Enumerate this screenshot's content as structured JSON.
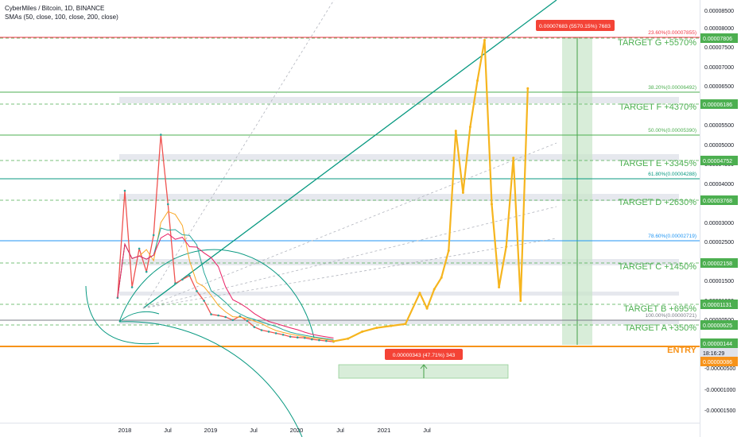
{
  "header": {
    "title": "CyberMiles / Bitcoin, 1D, BINANCE",
    "indicators": "SMAs (50, close, 100, close, 200, close)"
  },
  "chart_data": {
    "type": "line",
    "title": "CyberMiles / Bitcoin, 1D, BINANCE",
    "ylim": [
      -1.8e-06,
      8.8e-06
    ],
    "price_axis_ticks": [
      "0.00008500",
      "0.00008000",
      "0.00007500",
      "0.00007000",
      "0.00006500",
      "0.00006000",
      "0.00005500",
      "0.00005000",
      "0.00004500",
      "0.00004000",
      "0.00003500",
      "0.00003000",
      "0.00002500",
      "0.00002000",
      "0.00001500",
      "0.00001000",
      "0.00000500",
      "-0.00000500",
      "-0.00001000",
      "-0.00001500"
    ],
    "time_axis_ticks": [
      "2018",
      "Jul",
      "2019",
      "Jul",
      "2020",
      "Jul",
      "2021",
      "Jul"
    ],
    "price_history": {
      "dates": [
        "2017-12",
        "2018-01",
        "2018-02",
        "2018-03",
        "2018-04",
        "2018-05",
        "2018-06",
        "2018-07",
        "2018-08",
        "2018-09",
        "2018-10",
        "2018-11",
        "2018-12",
        "2019-01",
        "2019-02",
        "2019-03",
        "2019-04",
        "2019-05",
        "2019-06",
        "2019-07",
        "2019-08",
        "2019-09",
        "2019-10",
        "2019-11",
        "2019-12",
        "2020-01",
        "2020-02",
        "2020-03",
        "2020-04",
        "2020-05",
        "2020-06"
      ],
      "values": [
        1.18e-05,
        3.95e-05,
        1.45e-05,
        2.45e-05,
        1.85e-05,
        2.8e-05,
        5.4e-05,
        3.6e-05,
        1.55e-05,
        1.65e-05,
        1.75e-05,
        1.35e-05,
        1.1e-05,
        7.5e-06,
        7.2e-06,
        6.8e-06,
        6e-06,
        7e-06,
        5.8e-06,
        4.2e-06,
        3.4e-06,
        3e-06,
        2.6e-06,
        2.2e-06,
        1.7e-06,
        1.5e-06,
        1.4e-06,
        1e-06,
        8e-07,
        6e-07,
        4e-07
      ]
    },
    "projection": {
      "dates": [
        "2020-06",
        "2020-08",
        "2020-10",
        "2020-12",
        "2021-02",
        "2021-04",
        "2021-06",
        "2021-07",
        "2021-08",
        "2021-09",
        "2021-10",
        "2021-11",
        "2021-12",
        "2022-01",
        "2022-02",
        "2022-03",
        "2022-04",
        "2022-05",
        "2022-06",
        "2022-07",
        "2022-08",
        "2022-09"
      ],
      "values": [
        5e-07,
        1.2e-06,
        3e-06,
        4e-06,
        4.5e-06,
        5e-06,
        1.3e-05,
        9e-06,
        1.4e-05,
        1.7e-05,
        2.4e-05,
        5.5e-05,
        3.9e-05,
        5.6e-05,
        6.8e-05,
        7.85e-05,
        3.6e-05,
        1.45e-05,
        2.5e-05,
        4.8e-05,
        1.1e-05,
        6.6e-05
      ]
    },
    "targets": [
      {
        "label": "ENTRY",
        "price": "0.00000086",
        "color": "#f7931a"
      },
      {
        "label": "TARGET A +350%",
        "price": "0.00000625",
        "color": "#4caf50"
      },
      {
        "label": "TARGET B +695%",
        "price": "0.00001131",
        "color": "#4caf50"
      },
      {
        "label": "TARGET C +1450%",
        "price": "0.00002158",
        "color": "#4caf50"
      },
      {
        "label": "TARGET D +2630%",
        "price": "0.00003768",
        "color": "#4caf50"
      },
      {
        "label": "TARGET E +3345%",
        "price": "0.00004752",
        "color": "#4caf50"
      },
      {
        "label": "TARGET F +4370%",
        "price": "0.00006186",
        "color": "#4caf50"
      },
      {
        "label": "TARGET G +5570%",
        "price": "0.00007806",
        "color": "#4caf50"
      }
    ],
    "fib_levels": [
      {
        "label": "23.60%(0.00007855)",
        "color": "#f23645"
      },
      {
        "label": "38.20%(0.00006492)",
        "color": "#4caf50"
      },
      {
        "label": "50.00%(0.00005390)",
        "color": "#4caf50"
      },
      {
        "label": "61.80%(0.00004288)",
        "color": "#089981"
      },
      {
        "label": "78.60%(0.00002719)",
        "color": "#2196f3"
      },
      {
        "label": "100.00%(0.00000721)",
        "color": "#787b86"
      }
    ],
    "price_tags": [
      {
        "text": "0.00000144",
        "color": "#4caf50"
      },
      {
        "text": "18:16:29",
        "color": "#e0e3eb"
      },
      {
        "text": "0.00000086",
        "color": "#f7931a"
      }
    ],
    "measure_up": "0.00007683 (5570.15%) 7683",
    "measure_low": "0.00000343 (47.71%) 343",
    "colors": {
      "projection": "#f6b51e",
      "candles_up": "#26a69a",
      "candles_down": "#ef5350",
      "sma50": "#f9a825",
      "sma100": "#26a69a",
      "sma200": "#e91e63",
      "target_line": "#4caf50",
      "trendline": "#089981",
      "zone_green": "#c8e6c9"
    }
  }
}
